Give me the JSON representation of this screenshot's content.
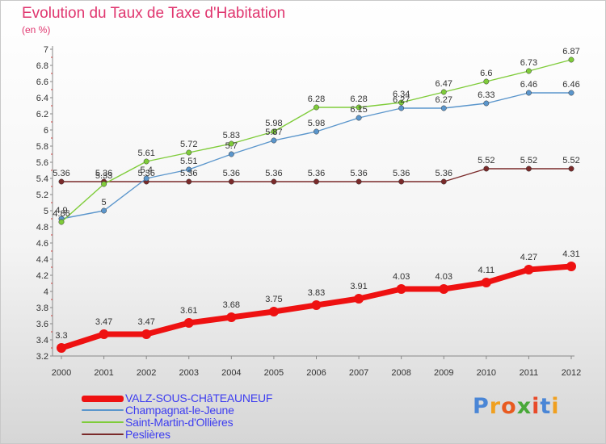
{
  "title": "Evolution du Taux de Taxe d'Habitation",
  "unit_label": "(en %)",
  "logo": {
    "text": "Proxiti",
    "colors": [
      "#4a86d6",
      "#f0a020",
      "#e85a20",
      "#48a838",
      "#e84a2a",
      "#4a86d6",
      "#f0a020"
    ]
  },
  "chart_data": {
    "type": "line",
    "title": "Evolution du Taux de Taxe d'Habitation",
    "ylabel": "(en %)",
    "xlabel": "",
    "ylim": [
      3.2,
      7
    ],
    "y_ticks": [
      "3.2",
      "3.4",
      "3.6",
      "3.8",
      "4",
      "4.2",
      "4.4",
      "4.6",
      "4.8",
      "5",
      "5.2",
      "5.4",
      "5.6",
      "5.8",
      "6",
      "6.2",
      "6.4",
      "6.6",
      "6.8",
      "7"
    ],
    "x": [
      "2000",
      "2001",
      "2002",
      "2003",
      "2004",
      "2005",
      "2006",
      "2007",
      "2008",
      "2009",
      "2010",
      "2011",
      "2012"
    ],
    "grid": false,
    "legend_position": "bottom-left",
    "series": [
      {
        "name": "Peslières",
        "color": "#7a2a2a",
        "values": [
          5.36,
          5.36,
          5.36,
          5.36,
          5.36,
          5.36,
          5.36,
          5.36,
          5.36,
          5.36,
          5.52,
          5.52,
          5.52
        ],
        "labels": [
          "5.36",
          "5.36",
          "5.36",
          "5.36",
          "5.36",
          "5.36",
          "5.36",
          "5.36",
          "5.36",
          "5.36",
          "5.52",
          "5.52",
          "5.52"
        ]
      },
      {
        "name": "Champagnat-le-Jeune",
        "color": "#5b96cc",
        "values": [
          4.9,
          5,
          5.4,
          5.51,
          5.7,
          5.87,
          5.98,
          6.15,
          6.27,
          6.27,
          6.33,
          6.46,
          6.46
        ],
        "labels": [
          "4.9",
          "5",
          "5.4",
          "5.51",
          "5.7",
          "5.87",
          "5.98",
          "6.15",
          "6.27",
          "6.27",
          "6.33",
          "6.46",
          "6.46"
        ]
      },
      {
        "name": "Saint-Martin-d'Ollières",
        "color": "#7fcc3a",
        "values": [
          4.86,
          5.33,
          5.61,
          5.72,
          5.83,
          5.98,
          6.28,
          6.28,
          6.34,
          6.47,
          6.6,
          6.73,
          6.87
        ],
        "labels": [
          "4.86",
          "5.33",
          "5.61",
          "5.72",
          "5.83",
          "5.98",
          "6.28",
          "6.28",
          "6.34",
          "6.47",
          "6.6",
          "6.73",
          "6.87"
        ]
      },
      {
        "name": "VALZ-SOUS-CHâTEAUNEUF",
        "color": "#ee1111",
        "values": [
          3.3,
          3.47,
          3.47,
          3.61,
          3.68,
          3.75,
          3.83,
          3.91,
          4.03,
          4.03,
          4.11,
          4.27,
          4.31
        ],
        "labels": [
          "3.3",
          "3.47",
          "3.47",
          "3.61",
          "3.68",
          "3.75",
          "3.83",
          "3.91",
          "4.03",
          "4.03",
          "4.11",
          "4.27",
          "4.31"
        ]
      }
    ]
  },
  "legend": [
    {
      "label": "VALZ-SOUS-CHâTEAUNEUF",
      "color": "#ee1111"
    },
    {
      "label": "Champagnat-le-Jeune",
      "color": "#5b96cc"
    },
    {
      "label": "Saint-Martin-d'Ollières",
      "color": "#7fcc3a"
    },
    {
      "label": "Peslières",
      "color": "#7a2a2a"
    }
  ]
}
